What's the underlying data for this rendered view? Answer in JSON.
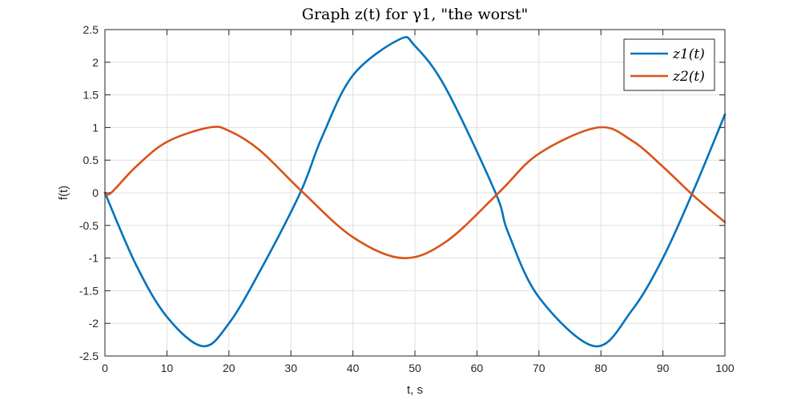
{
  "chart_data": {
    "type": "line",
    "title": "Graph z(t) for γ1, \"the worst\"",
    "xlabel": "t, s",
    "ylabel": "f(t)",
    "xlim": [
      0,
      100
    ],
    "ylim": [
      -2.5,
      2.5
    ],
    "xticks": [
      0,
      10,
      20,
      30,
      40,
      50,
      60,
      70,
      80,
      90,
      100
    ],
    "yticks": [
      2.5,
      2,
      1.5,
      1,
      0.5,
      0,
      -0.5,
      -1,
      -1.5,
      -2,
      -2.5
    ],
    "xtick_labels": [
      "0",
      "10",
      "20",
      "30",
      "40",
      "50",
      "60",
      "70",
      "80",
      "90",
      "100"
    ],
    "ytick_labels": [
      "2.5",
      "2",
      "1.5",
      "1",
      "0.5",
      "0",
      "-0.5",
      "-1",
      "-1.5",
      "-2",
      "-2.5"
    ],
    "grid": true,
    "legend_position": "top-right",
    "series": [
      {
        "name": "z1(t)",
        "color": "#0072BD",
        "x": [
          0,
          5,
          10,
          15.8,
          20,
          25,
          31.5,
          35,
          40,
          47.5,
          50,
          55,
          63,
          65,
          70,
          79,
          85,
          90,
          95,
          100
        ],
        "y": [
          0,
          -1.1,
          -1.9,
          -2.35,
          -2.0,
          -1.2,
          0,
          0.85,
          1.8,
          2.35,
          2.25,
          1.6,
          0,
          -0.6,
          -1.6,
          -2.35,
          -1.8,
          -1.0,
          0.05,
          1.2
        ]
      },
      {
        "name": "z2(t)",
        "color": "#D95319",
        "x": [
          0,
          1,
          5,
          10,
          16.8,
          20,
          25,
          32,
          40,
          48,
          55,
          63.5,
          70,
          79.5,
          85,
          90,
          95,
          100
        ],
        "y": [
          0,
          0,
          0.4,
          0.78,
          1.0,
          0.95,
          0.65,
          0,
          -0.68,
          -1.0,
          -0.75,
          0,
          0.6,
          1.0,
          0.8,
          0.4,
          -0.05,
          -0.45
        ]
      }
    ]
  }
}
